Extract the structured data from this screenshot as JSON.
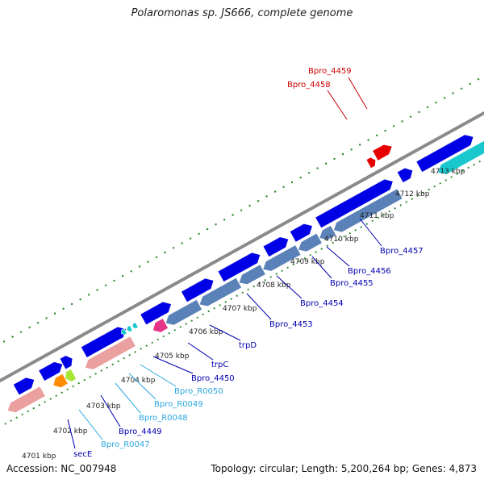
{
  "title": "Polaromonas sp. JS666, complete genome",
  "footer": {
    "accession": "Accession: NC_007948",
    "topology": "Topology: circular; Length: 5,200,264 bp; Genes: 4,873"
  },
  "colors": {
    "backbone": "#8a8a8a",
    "cds": "#0000e6",
    "cds_alt": "#5b82b8",
    "teal": "#19c8cc",
    "red": "#e60000",
    "magenta": "#e6338a",
    "pink": "#eba0a0",
    "orange": "#ff8c00",
    "lime": "#a8e635",
    "label_blue": "#0000b0",
    "label_cyan": "#2aa7df",
    "label_red": "#cc0000",
    "tick_dot": "#2b8a2b",
    "tick_major": "#1f6e1f"
  },
  "kbp_labels": [
    "4701 kbp",
    "4702 kbp",
    "4703 kbp",
    "4704 kbp",
    "4705 kbp",
    "4706 kbp",
    "4707 kbp",
    "4708 kbp",
    "4709 kbp",
    "4710 kbp",
    "4711 kbp",
    "4712 kbp",
    "4713 kbp"
  ],
  "gene_labels": [
    {
      "text": "secE",
      "color": "label_blue"
    },
    {
      "text": "Bpro_R0047",
      "color": "label_cyan"
    },
    {
      "text": "Bpro_4449",
      "color": "label_blue"
    },
    {
      "text": "Bpro_R0048",
      "color": "label_cyan"
    },
    {
      "text": "Bpro_R0049",
      "color": "label_cyan"
    },
    {
      "text": "Bpro_R0050",
      "color": "label_cyan"
    },
    {
      "text": "Bpro_4450",
      "color": "label_blue"
    },
    {
      "text": "trpC",
      "color": "label_blue"
    },
    {
      "text": "trpD",
      "color": "label_blue"
    },
    {
      "text": "Bpro_4453",
      "color": "label_blue"
    },
    {
      "text": "Bpro_4454",
      "color": "label_blue"
    },
    {
      "text": "Bpro_4455",
      "color": "label_blue"
    },
    {
      "text": "Bpro_4456",
      "color": "label_blue"
    },
    {
      "text": "Bpro_4457",
      "color": "label_blue"
    },
    {
      "text": "Bpro_4458",
      "color": "label_red"
    },
    {
      "text": "Bpro_4459",
      "color": "label_red"
    }
  ]
}
